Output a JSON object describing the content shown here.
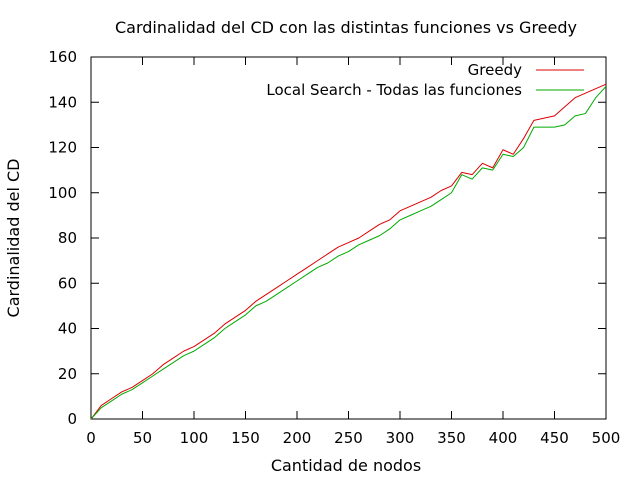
{
  "chart_data": {
    "type": "line",
    "title": "Cardinalidad del CD con las distintas funciones vs Greedy",
    "xlabel": "Cantidad de nodos",
    "ylabel": "Cardinalidad del CD",
    "xlim": [
      0,
      500
    ],
    "ylim": [
      0,
      160
    ],
    "x_ticks": [
      0,
      50,
      100,
      150,
      200,
      250,
      300,
      350,
      400,
      450,
      500
    ],
    "y_ticks": [
      0,
      20,
      40,
      60,
      80,
      100,
      120,
      140,
      160
    ],
    "grid": false,
    "legend_position": "top-right",
    "series": [
      {
        "name": "Greedy",
        "color": "#dd0000",
        "x": [
          0,
          10,
          20,
          30,
          40,
          50,
          60,
          70,
          80,
          90,
          100,
          110,
          120,
          130,
          140,
          150,
          160,
          170,
          180,
          190,
          200,
          210,
          220,
          230,
          240,
          250,
          260,
          270,
          280,
          290,
          300,
          310,
          320,
          330,
          340,
          350,
          360,
          370,
          380,
          390,
          400,
          410,
          420,
          430,
          440,
          450,
          460,
          470,
          480,
          490,
          500
        ],
        "values": [
          0,
          6,
          9,
          12,
          14,
          17,
          20,
          24,
          27,
          30,
          32,
          35,
          38,
          42,
          45,
          48,
          52,
          55,
          58,
          61,
          64,
          67,
          70,
          73,
          76,
          78,
          80,
          83,
          86,
          88,
          92,
          94,
          96,
          98,
          101,
          103,
          109,
          108,
          113,
          111,
          119,
          117,
          124,
          132,
          133,
          134,
          138,
          142,
          144,
          146,
          148
        ]
      },
      {
        "name": "Local Search - Todas las funciones",
        "color": "#00aa00",
        "x": [
          0,
          10,
          20,
          30,
          40,
          50,
          60,
          70,
          80,
          90,
          100,
          110,
          120,
          130,
          140,
          150,
          160,
          170,
          180,
          190,
          200,
          210,
          220,
          230,
          240,
          250,
          260,
          270,
          280,
          290,
          300,
          310,
          320,
          330,
          340,
          350,
          360,
          370,
          380,
          390,
          400,
          410,
          420,
          430,
          440,
          450,
          460,
          470,
          480,
          490,
          500
        ],
        "values": [
          0,
          5,
          8,
          11,
          13,
          16,
          19,
          22,
          25,
          28,
          30,
          33,
          36,
          40,
          43,
          46,
          50,
          52,
          55,
          58,
          61,
          64,
          67,
          69,
          72,
          74,
          77,
          79,
          81,
          84,
          88,
          90,
          92,
          94,
          97,
          100,
          108,
          106,
          111,
          110,
          117,
          116,
          120,
          129,
          129,
          129,
          130,
          134,
          135,
          142,
          147
        ]
      }
    ]
  }
}
